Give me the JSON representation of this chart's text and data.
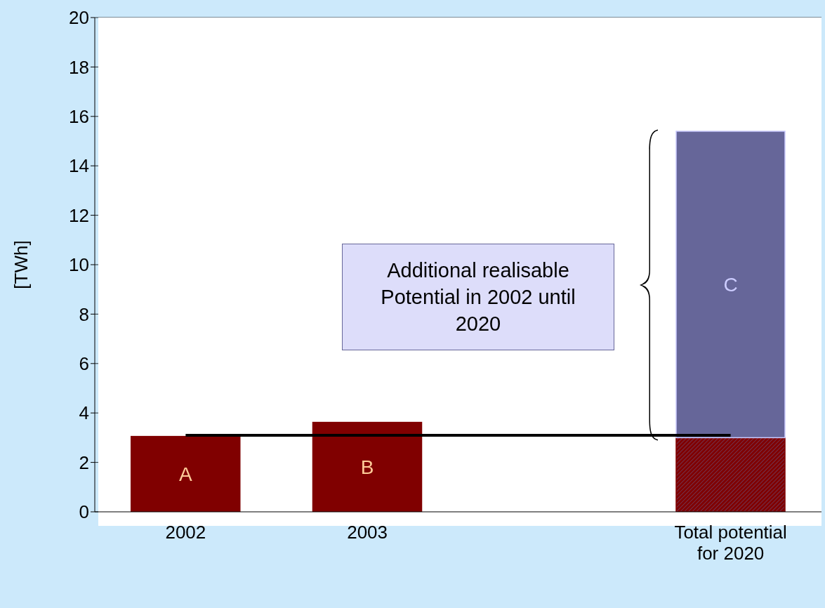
{
  "chart_data": {
    "type": "bar",
    "stacked": true,
    "ylabel": "[TWh]",
    "categories": [
      "2002",
      "2003",
      null,
      "Total potential for 2020"
    ],
    "series": [
      {
        "color": "#800000",
        "values": [
          3.05,
          3.62,
          null,
          3.0
        ],
        "value_labels": [
          "A",
          "B",
          null,
          null
        ]
      },
      {
        "color": "#666699",
        "values": [
          null,
          null,
          null,
          12.4
        ],
        "value_labels": [
          null,
          null,
          null,
          "C"
        ]
      }
    ],
    "ylim": [
      0,
      20
    ],
    "yticks": [
      0,
      2,
      4,
      6,
      8,
      10,
      12,
      14,
      16,
      18,
      20
    ],
    "grid": "y",
    "legend": false,
    "ref_lines": [
      {
        "axis": "y",
        "value": 3.1,
        "color": "#000000"
      }
    ],
    "annotations": [
      "Additional realisable Potential in 2002 until 2020"
    ]
  }
}
